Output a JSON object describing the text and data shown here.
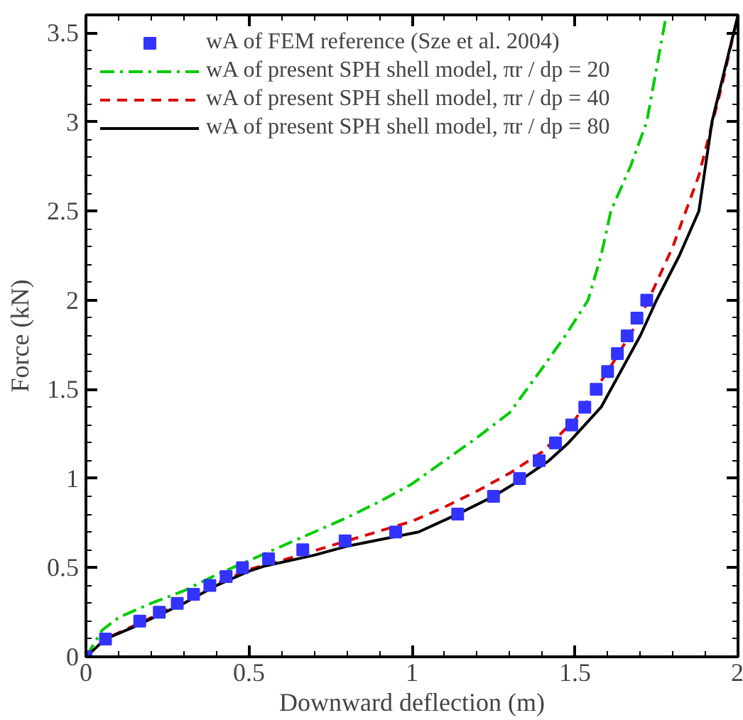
{
  "chart_data": {
    "type": "line",
    "xlabel": "Downward deflection (m)",
    "ylabel": "Force (kN)",
    "xlim": [
      0,
      2
    ],
    "ylim": [
      0,
      3.6
    ],
    "xticks": [
      0,
      0.5,
      1,
      1.5,
      2
    ],
    "yticks": [
      0,
      0.5,
      1,
      1.5,
      2,
      2.5,
      3,
      3.5
    ],
    "grid": false,
    "legend": "top left",
    "series": [
      {
        "name": "wA of FEM reference (Sze et al. 2004)",
        "type": "scatter",
        "marker": "square",
        "color": "#3333ff",
        "x": [
          0,
          0.06,
          0.165,
          0.225,
          0.28,
          0.33,
          0.38,
          0.43,
          0.48,
          0.56,
          0.665,
          0.795,
          0.95,
          1.14,
          1.25,
          1.33,
          1.39,
          1.44,
          1.49,
          1.53,
          1.565,
          1.6,
          1.63,
          1.66,
          1.69,
          1.72
        ],
        "values": [
          0,
          0.1,
          0.2,
          0.25,
          0.3,
          0.35,
          0.4,
          0.45,
          0.5,
          0.55,
          0.6,
          0.65,
          0.7,
          0.8,
          0.9,
          1.0,
          1.1,
          1.2,
          1.3,
          1.4,
          1.5,
          1.6,
          1.7,
          1.8,
          1.9,
          2.0
        ]
      },
      {
        "name": "wA of present SPH shell model, πr / dp = 20",
        "line_style": "dashdot",
        "color": "#00cc00",
        "x": [
          0,
          0.05,
          0.1,
          0.2,
          0.3,
          0.4,
          0.5,
          0.6,
          0.7,
          0.8,
          0.9,
          1.0,
          1.1,
          1.2,
          1.3,
          1.4,
          1.47,
          1.54,
          1.58,
          1.61,
          1.67,
          1.72,
          1.75,
          1.78
        ],
        "values": [
          0,
          0.15,
          0.22,
          0.3,
          0.37,
          0.46,
          0.54,
          0.62,
          0.7,
          0.78,
          0.87,
          0.97,
          1.1,
          1.23,
          1.37,
          1.62,
          1.8,
          2.0,
          2.25,
          2.5,
          2.75,
          3.0,
          3.3,
          3.6
        ]
      },
      {
        "name": "wA of present SPH shell model, πr / dp = 40",
        "line_style": "dashed",
        "color": "#dd0000",
        "x": [
          0,
          0.06,
          0.2,
          0.3,
          0.4,
          0.5,
          0.6,
          0.8,
          1.0,
          1.1,
          1.2,
          1.3,
          1.4,
          1.5,
          1.6,
          1.7,
          1.8,
          1.88,
          1.95,
          2.0
        ],
        "values": [
          0,
          0.1,
          0.22,
          0.31,
          0.41,
          0.49,
          0.54,
          0.65,
          0.76,
          0.84,
          0.93,
          1.03,
          1.15,
          1.33,
          1.6,
          1.9,
          2.3,
          2.7,
          3.2,
          3.6
        ]
      },
      {
        "name": "wA of present SPH shell model, πr / dp = 80",
        "line_style": "solid",
        "color": "#000000",
        "x": [
          0,
          0.06,
          0.15,
          0.3,
          0.4,
          0.5,
          0.55,
          0.7,
          0.8,
          1.02,
          1.14,
          1.25,
          1.34,
          1.42,
          1.48,
          1.58,
          1.64,
          1.7,
          1.75,
          1.82,
          1.88,
          1.92,
          1.96,
          2.0
        ],
        "values": [
          0,
          0.1,
          0.17,
          0.3,
          0.4,
          0.48,
          0.51,
          0.57,
          0.62,
          0.7,
          0.8,
          0.9,
          1.0,
          1.1,
          1.2,
          1.4,
          1.6,
          1.8,
          2.0,
          2.25,
          2.5,
          3.0,
          3.3,
          3.6
        ]
      }
    ]
  }
}
